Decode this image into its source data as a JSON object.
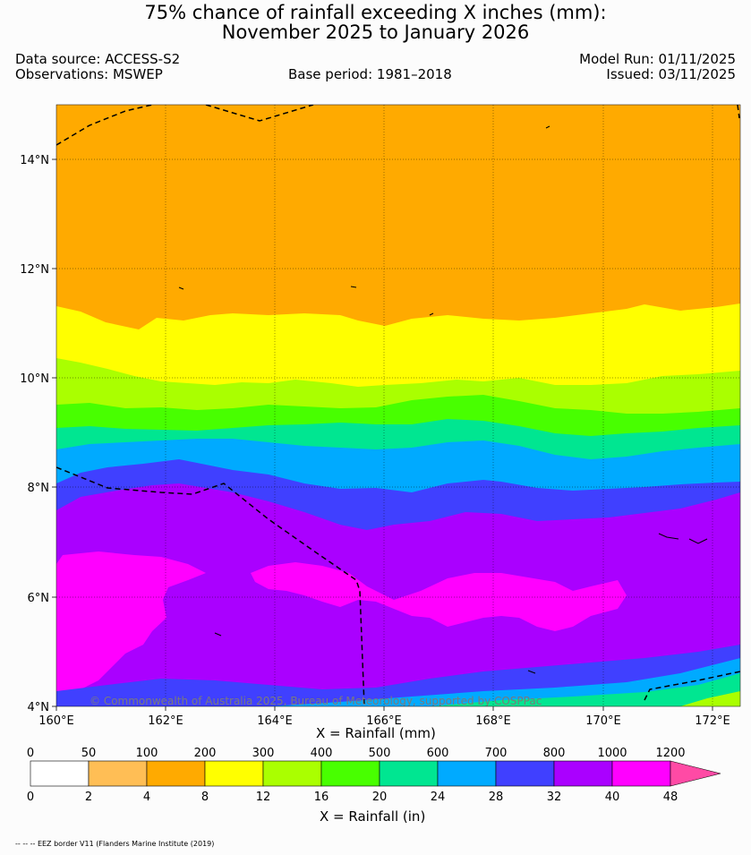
{
  "header": {
    "title_line1": "75% chance of rainfall exceeding X inches (mm):",
    "title_line2": "November 2025 to January 2026",
    "data_source": "Data source: ACCESS-S2",
    "observations": "Observations: MSWEP",
    "base_period": "Base period: 1981–2018",
    "model_run": "Model Run: 01/11/2025",
    "issued": "Issued: 03/11/2025"
  },
  "map": {
    "lat_labels": [
      "14°N",
      "12°N",
      "10°N",
      "8°N",
      "6°N",
      "4°N"
    ],
    "lon_labels": [
      "160°E",
      "162°E",
      "164°E",
      "166°E",
      "168°E",
      "170°E",
      "172°E"
    ],
    "extent": {
      "lon_min": 160,
      "lon_max": 172.5,
      "lat_min": 4,
      "lat_max": 15
    },
    "copyright": "© Commonwealth of Australia 2025, Bureau of Meteorology, supported by COSPPac",
    "bands": [
      {
        "label": "200-300 mm",
        "color": "#ffaa00"
      },
      {
        "label": "300-400 mm",
        "color": "#ffff00"
      },
      {
        "label": "400-500 mm",
        "color": "#aaff00"
      },
      {
        "label": "500-600 mm",
        "color": "#48ff00"
      },
      {
        "label": "600-700 mm",
        "color": "#00e691"
      },
      {
        "label": "700-800 mm",
        "color": "#00aaff"
      },
      {
        "label": "800-1000 mm",
        "color": "#4040ff"
      },
      {
        "label": "1000-1200 mm",
        "color": "#aa00ff"
      },
      {
        "label": "above 1200 mm",
        "color": "#ff00ff"
      }
    ]
  },
  "legend": {
    "mm_title": "X = Rainfall (mm)",
    "in_title": "X = Rainfall (in)",
    "mm_ticks": [
      "0",
      "50",
      "100",
      "200",
      "300",
      "400",
      "500",
      "600",
      "700",
      "800",
      "1000",
      "1200"
    ],
    "in_ticks": [
      "0",
      "2",
      "4",
      "8",
      "12",
      "16",
      "20",
      "24",
      "28",
      "32",
      "40",
      "48"
    ],
    "colors": [
      "#ffffff",
      "#ffbe55",
      "#ffaa00",
      "#ffff00",
      "#aaff00",
      "#48ff00",
      "#00e691",
      "#00aaff",
      "#4040ff",
      "#aa00ff",
      "#ff00ff"
    ],
    "extend_color": "#ff4aa5"
  },
  "footnote": "-- -- -- EEZ border V11 (Flanders Marine Institute (2019)"
}
